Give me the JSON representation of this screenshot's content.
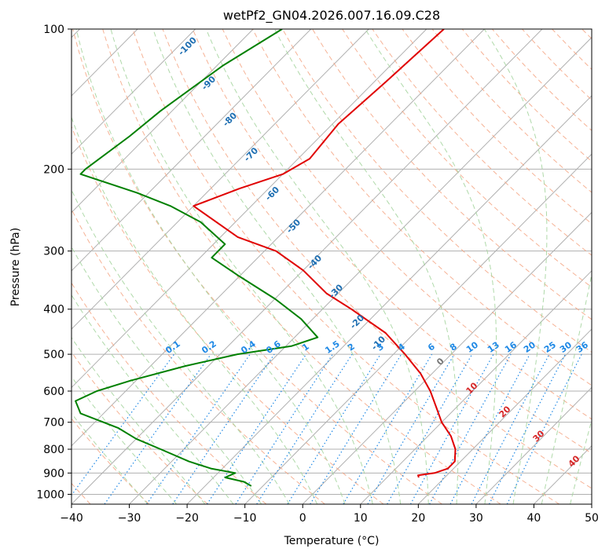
{
  "chart_data": {
    "type": "line",
    "subtype": "skew-t log-p diagram",
    "title": "wetPf2_GN04.2026.007.16.09.C28",
    "xlabel": "Temperature (°C)",
    "ylabel": "Pressure (hPa)",
    "xlim": [
      -40,
      50
    ],
    "ylim": [
      1050,
      100
    ],
    "x_ticks": [
      -40,
      -30,
      -20,
      -10,
      0,
      10,
      20,
      30,
      40,
      50
    ],
    "y_ticks": [
      100,
      200,
      300,
      400,
      500,
      600,
      700,
      800,
      900,
      1000
    ],
    "grid": true,
    "series": [
      {
        "name": "temperature",
        "color": "#e00000",
        "points": [
          {
            "p": 100,
            "t": -57
          },
          {
            "p": 130,
            "t": -58
          },
          {
            "p": 160,
            "t": -59
          },
          {
            "p": 190,
            "t": -58
          },
          {
            "p": 205,
            "t": -60
          },
          {
            "p": 220,
            "t": -65
          },
          {
            "p": 240,
            "t": -70
          },
          {
            "p": 280,
            "t": -57
          },
          {
            "p": 300,
            "t": -48
          },
          {
            "p": 330,
            "t": -40
          },
          {
            "p": 370,
            "t": -32
          },
          {
            "p": 400,
            "t": -25
          },
          {
            "p": 450,
            "t": -15
          },
          {
            "p": 500,
            "t": -8
          },
          {
            "p": 550,
            "t": -2
          },
          {
            "p": 600,
            "t": 2.7
          },
          {
            "p": 650,
            "t": 6.5
          },
          {
            "p": 700,
            "t": 10
          },
          {
            "p": 750,
            "t": 14
          },
          {
            "p": 800,
            "t": 17
          },
          {
            "p": 850,
            "t": 19
          },
          {
            "p": 880,
            "t": 19
          },
          {
            "p": 900,
            "t": 17.5
          },
          {
            "p": 910,
            "t": 15
          },
          {
            "p": 920,
            "t": 15.5
          }
        ]
      },
      {
        "name": "dewpoint",
        "color": "#008000",
        "points": [
          {
            "p": 100,
            "t": -85
          },
          {
            "p": 120,
            "t": -89
          },
          {
            "p": 150,
            "t": -92
          },
          {
            "p": 170,
            "t": -93
          },
          {
            "p": 200,
            "t": -95
          },
          {
            "p": 205,
            "t": -95
          },
          {
            "p": 225,
            "t": -82
          },
          {
            "p": 240,
            "t": -74
          },
          {
            "p": 260,
            "t": -66
          },
          {
            "p": 290,
            "t": -58
          },
          {
            "p": 310,
            "t": -58
          },
          {
            "p": 340,
            "t": -50
          },
          {
            "p": 380,
            "t": -40
          },
          {
            "p": 420,
            "t": -32
          },
          {
            "p": 460,
            "t": -26
          },
          {
            "p": 480,
            "t": -29
          },
          {
            "p": 500,
            "t": -37
          },
          {
            "p": 530,
            "t": -44
          },
          {
            "p": 570,
            "t": -51
          },
          {
            "p": 600,
            "t": -55
          },
          {
            "p": 630,
            "t": -57
          },
          {
            "p": 670,
            "t": -54
          },
          {
            "p": 720,
            "t": -45
          },
          {
            "p": 760,
            "t": -40
          },
          {
            "p": 800,
            "t": -34
          },
          {
            "p": 850,
            "t": -27
          },
          {
            "p": 880,
            "t": -22
          },
          {
            "p": 900,
            "t": -17
          },
          {
            "p": 920,
            "t": -18
          },
          {
            "p": 940,
            "t": -14
          },
          {
            "p": 960,
            "t": -12
          }
        ]
      }
    ],
    "dry_adiabat_labels": [
      "-100",
      "-90",
      "-80",
      "-70",
      "-60",
      "-50",
      "-40",
      "-30",
      "-20",
      "-10"
    ],
    "moist_adiabat_labels": [
      "0",
      "10",
      "20",
      "30",
      "40"
    ],
    "mixing_ratio_labels": [
      "0.1",
      "0.2",
      "0.4",
      "0.6",
      "1",
      "1.5",
      "2",
      "3",
      "4",
      "6",
      "8",
      "10",
      "13",
      "16",
      "20",
      "25",
      "30",
      "36"
    ],
    "colors": {
      "isotherm": "#b0b0b0",
      "isobar": "#b0b0b0",
      "dry_adiabat": "#f4a582",
      "moist_adiabat": "#a6d5a0",
      "mixing_ratio": "#1e88e5"
    }
  }
}
